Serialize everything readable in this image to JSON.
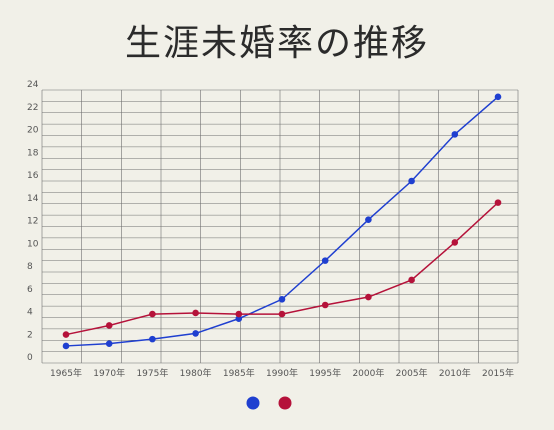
{
  "chart_data": {
    "type": "line",
    "title": "生涯未婚率の推移",
    "categories": [
      "1965年",
      "1970年",
      "1975年",
      "1980年",
      "1985年",
      "1990年",
      "1995年",
      "2000年",
      "2005年",
      "2010年",
      "2015年"
    ],
    "ylim": [
      0,
      24
    ],
    "yticks": [
      0,
      2,
      4,
      6,
      8,
      10,
      12,
      14,
      16,
      18,
      20,
      22,
      24
    ],
    "grid": true,
    "legend": "bottom",
    "series": [
      {
        "color": "#1f3fd0",
        "values": [
          1.5,
          1.7,
          2.1,
          2.6,
          3.9,
          5.6,
          9.0,
          12.6,
          16.0,
          20.1,
          23.4
        ]
      },
      {
        "color": "#b5123a",
        "values": [
          2.5,
          3.3,
          4.3,
          4.4,
          4.3,
          4.3,
          5.1,
          5.8,
          7.3,
          10.6,
          14.1
        ]
      }
    ]
  }
}
